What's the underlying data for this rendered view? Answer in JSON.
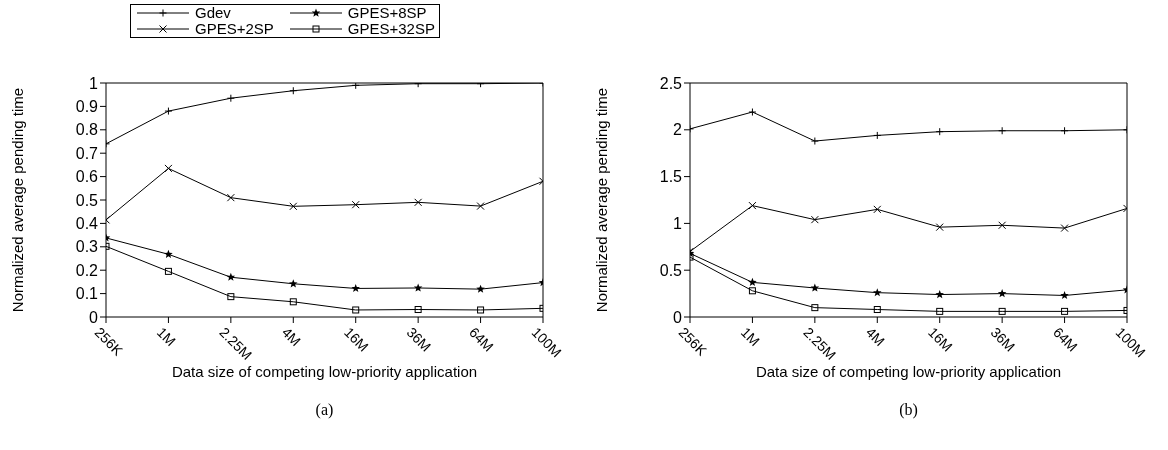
{
  "chart_data": [
    {
      "type": "line",
      "xlabel": "Data size of competing low-priority application",
      "ylabel": "Normalized average pending time",
      "annotations": [
        "(a)"
      ],
      "categories": [
        "256K",
        "1M",
        "2.25M",
        "4M",
        "16M",
        "36M",
        "64M",
        "100M"
      ],
      "ylim": [
        0,
        1
      ],
      "yticks": [
        0,
        0.1,
        0.2,
        0.3,
        0.4,
        0.5,
        0.6,
        0.7,
        0.8,
        0.9,
        1
      ],
      "grid": false,
      "legend": "top",
      "series": [
        {
          "name": "Gdev",
          "color": "#000000",
          "marker": "plus",
          "values": [
            0.74,
            0.88,
            0.935,
            0.967,
            0.99,
            0.997,
            0.997,
            1.0
          ]
        },
        {
          "name": "GPES+2SP",
          "color": "#000000",
          "marker": "cross",
          "values": [
            0.415,
            0.635,
            0.51,
            0.473,
            0.48,
            0.49,
            0.474,
            0.58
          ]
        },
        {
          "name": "GPES+8SP",
          "color": "#000000",
          "marker": "star",
          "values": [
            0.338,
            0.268,
            0.17,
            0.142,
            0.122,
            0.124,
            0.119,
            0.147
          ]
        },
        {
          "name": "GPES+32SP",
          "color": "#000000",
          "marker": "square",
          "values": [
            0.302,
            0.195,
            0.087,
            0.065,
            0.03,
            0.032,
            0.03,
            0.037
          ]
        }
      ]
    },
    {
      "type": "line",
      "xlabel": "Data size of competing low-priority application",
      "ylabel": "Normalized average pending time",
      "annotations": [
        "(b)"
      ],
      "categories": [
        "256K",
        "1M",
        "2.25M",
        "4M",
        "16M",
        "36M",
        "64M",
        "100M"
      ],
      "ylim": [
        0,
        2.5
      ],
      "yticks": [
        0,
        0.5,
        1,
        1.5,
        2,
        2.5
      ],
      "grid": false,
      "series": [
        {
          "color": "#000000",
          "marker": "plus",
          "values": [
            2.01,
            2.19,
            1.88,
            1.94,
            1.98,
            1.99,
            1.99,
            2.0
          ]
        },
        {
          "color": "#000000",
          "marker": "cross",
          "values": [
            0.7,
            1.19,
            1.04,
            1.15,
            0.96,
            0.98,
            0.95,
            1.16
          ]
        },
        {
          "color": "#000000",
          "marker": "star",
          "values": [
            0.68,
            0.37,
            0.31,
            0.26,
            0.24,
            0.25,
            0.23,
            0.29
          ]
        },
        {
          "color": "#000000",
          "marker": "square",
          "values": [
            0.64,
            0.28,
            0.1,
            0.08,
            0.06,
            0.06,
            0.06,
            0.07
          ]
        }
      ]
    }
  ]
}
